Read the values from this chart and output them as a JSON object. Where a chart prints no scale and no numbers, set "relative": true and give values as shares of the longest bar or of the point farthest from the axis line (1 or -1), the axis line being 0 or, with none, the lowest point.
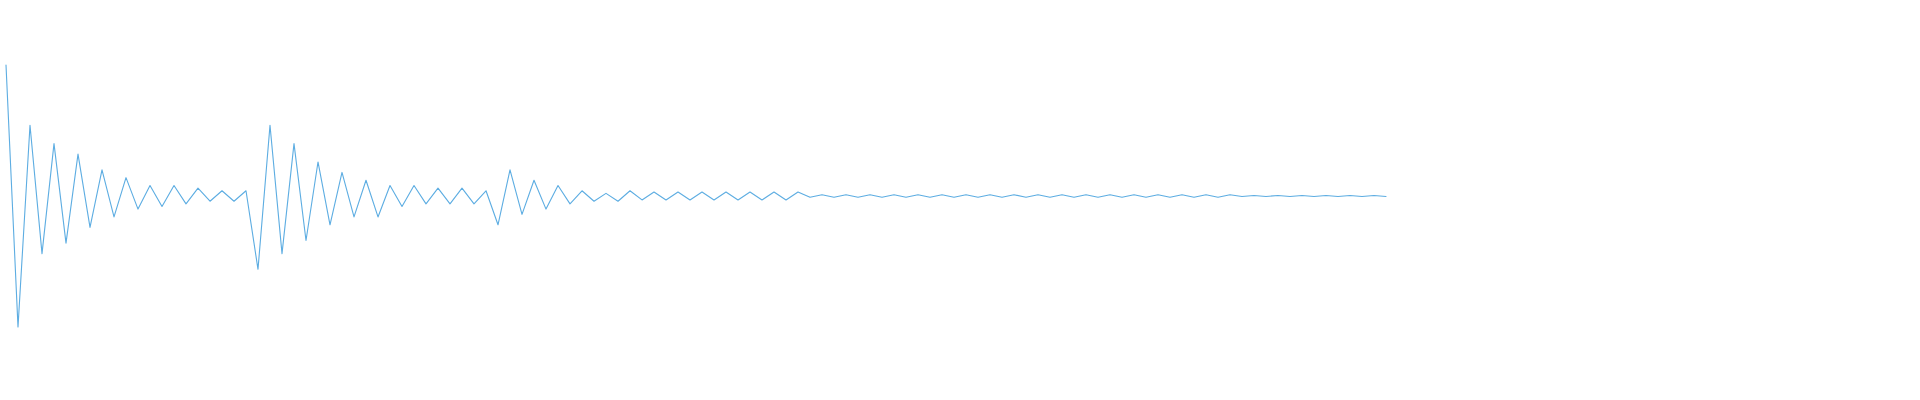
{
  "chart_data": {
    "type": "line",
    "relative": true,
    "color": "#5dade2",
    "marker": "none",
    "line_style": "solid",
    "categories": [
      null,
      null,
      null,
      null,
      null,
      null,
      null,
      null,
      null,
      null,
      null,
      null,
      null,
      null,
      null,
      null,
      null,
      null,
      null,
      null,
      null,
      null,
      null,
      null,
      null,
      null,
      null,
      null,
      null,
      null,
      null,
      null,
      null,
      null,
      null,
      null,
      null,
      null,
      null,
      null,
      null,
      null,
      null,
      null,
      null,
      null,
      null,
      null,
      null,
      null,
      null,
      null,
      null,
      null,
      null,
      null,
      null,
      null,
      null,
      null,
      null,
      null,
      null,
      null,
      null,
      null,
      null,
      null,
      null,
      null,
      null,
      null,
      null,
      null,
      null,
      null,
      null,
      null,
      null,
      null,
      null,
      null,
      null,
      null,
      null,
      null,
      null,
      null,
      null,
      null,
      null,
      null,
      null,
      null,
      null,
      null,
      null,
      null,
      null,
      null,
      null,
      null,
      null,
      null,
      null,
      null,
      null,
      null,
      null,
      null,
      null,
      null,
      null,
      null,
      null,
      null,
      null,
      null,
      null,
      null,
      null,
      null,
      null,
      null,
      null,
      null,
      null,
      null,
      null,
      null,
      null,
      null,
      null,
      null,
      null,
      null,
      null,
      null,
      null,
      null,
      null,
      null,
      null,
      null,
      null,
      null,
      null,
      null,
      null,
      null,
      null,
      null,
      null,
      null,
      null,
      null,
      null,
      null,
      null,
      null
    ],
    "values": [
      1.0,
      0.0,
      0.77,
      0.28,
      0.7,
      0.32,
      0.66,
      0.38,
      0.6,
      0.42,
      0.57,
      0.45,
      0.54,
      0.46,
      0.54,
      0.47,
      0.53,
      0.48,
      0.52,
      0.48,
      0.52,
      0.22,
      0.77,
      0.28,
      0.7,
      0.33,
      0.63,
      0.39,
      0.59,
      0.42,
      0.56,
      0.42,
      0.54,
      0.46,
      0.54,
      0.47,
      0.53,
      0.47,
      0.53,
      0.47,
      0.52,
      0.39,
      0.6,
      0.43,
      0.56,
      0.45,
      0.54,
      0.47,
      0.52,
      0.48,
      0.51,
      0.48,
      0.52,
      0.485,
      0.515,
      0.485,
      0.515,
      0.485,
      0.515,
      0.485,
      0.515,
      0.485,
      0.515,
      0.485,
      0.515,
      0.485,
      0.515,
      0.495,
      0.505,
      0.495,
      0.505,
      0.495,
      0.505,
      0.495,
      0.505,
      0.495,
      0.505,
      0.495,
      0.505,
      0.495,
      0.505,
      0.495,
      0.505,
      0.495,
      0.505,
      0.495,
      0.505,
      0.495,
      0.505,
      0.495,
      0.505,
      0.495,
      0.505,
      0.495,
      0.505,
      0.495,
      0.505,
      0.495,
      0.505,
      0.495,
      0.505,
      0.495,
      0.505,
      0.498,
      0.502,
      0.498,
      0.502,
      0.498,
      0.502,
      0.498,
      0.502,
      0.498,
      0.502,
      0.498,
      0.502,
      0.498,
      null,
      null,
      null,
      null,
      null,
      null,
      null,
      null,
      null,
      null,
      null,
      null,
      null,
      null,
      null,
      null,
      null,
      null,
      null,
      null,
      null,
      null,
      null,
      null,
      null,
      null,
      null,
      null,
      null,
      null,
      null,
      null,
      null,
      null,
      null,
      null,
      null,
      null,
      null,
      null,
      null,
      null,
      null,
      null
    ]
  }
}
